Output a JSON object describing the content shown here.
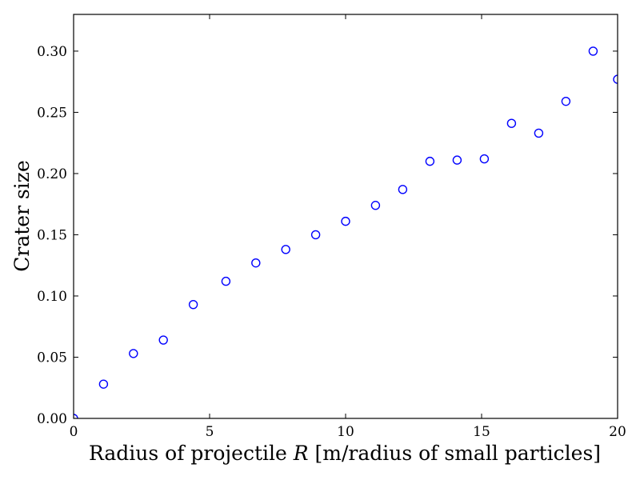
{
  "chart_data": {
    "type": "scatter",
    "xlabel_parts": [
      "Radius of projectile ",
      "R",
      " [m/radius of small particles]"
    ],
    "ylabel": "Crater size",
    "xlim": [
      0,
      20
    ],
    "ylim": [
      0,
      0.33
    ],
    "x_ticks": [
      0,
      5,
      10,
      15,
      20
    ],
    "x_tick_labels": [
      "0",
      "5",
      "10",
      "15",
      "20"
    ],
    "y_ticks": [
      0.0,
      0.05,
      0.1,
      0.15,
      0.2,
      0.25,
      0.3
    ],
    "y_tick_labels": [
      "0.00",
      "0.05",
      "0.10",
      "0.15",
      "0.20",
      "0.25",
      "0.30"
    ],
    "grid": false,
    "marker": "open-circle",
    "marker_color": "#0000ff",
    "series": [
      {
        "x": [
          0,
          1.1,
          2.2,
          3.3,
          4.4,
          5.6,
          6.7,
          7.8,
          8.9,
          10.0,
          11.1,
          12.1,
          13.1,
          14.1,
          15.1,
          16.1,
          17.1,
          18.1,
          19.1,
          20.0
        ],
        "y": [
          0.0,
          0.028,
          0.053,
          0.064,
          0.093,
          0.112,
          0.127,
          0.138,
          0.15,
          0.161,
          0.174,
          0.187,
          0.21,
          0.211,
          0.212,
          0.241,
          0.233,
          0.259,
          0.3,
          0.277
        ]
      }
    ]
  }
}
